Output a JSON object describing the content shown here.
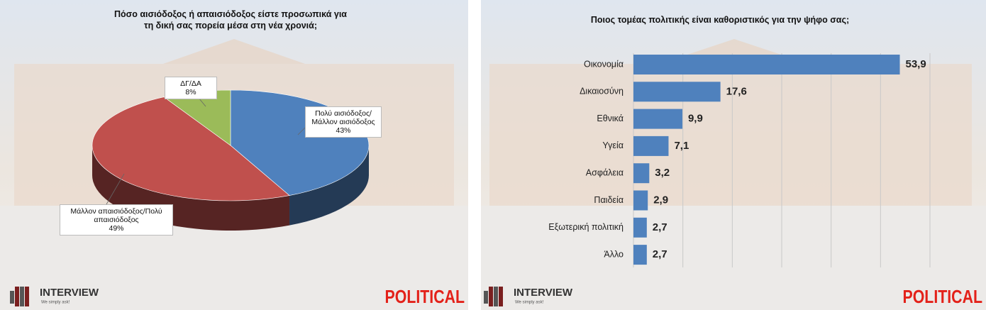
{
  "chart_data": [
    {
      "type": "pie",
      "title": "Πόσο αισιόδοξος ή απαισιόδοξος είστε προσωπικά για τη δική σας πορεία μέσα στη νέα χρονιά;",
      "categories": [
        "Πολύ αισιόδοξος/Μάλλον αισιόδοξος",
        "Μάλλον απαισιόδοξος/Πολύ απαισιόδοξος",
        "ΔΓ/ΔΑ"
      ],
      "values": [
        43,
        49,
        8
      ],
      "value_labels": [
        "43%",
        "49%",
        "8%"
      ],
      "colors": [
        "#4f81bd",
        "#c0504d",
        "#9bbb59"
      ]
    },
    {
      "type": "hbar",
      "title": "Ποιος τομέας πολιτικής είναι καθοριστικός για την ψήφο σας;",
      "categories": [
        "Οικονομία",
        "Δικαιοσύνη",
        "Εθνικά",
        "Υγεία",
        "Ασφάλεια",
        "Παιδεία",
        "Εξωτερική πολιτική",
        "Άλλο"
      ],
      "values": [
        53.9,
        17.6,
        9.9,
        7.1,
        3.2,
        2.9,
        2.7,
        2.7
      ],
      "value_labels": [
        "53,9",
        "17,6",
        "9,9",
        "7,1",
        "3,2",
        "2,9",
        "2,7",
        "2,7"
      ],
      "color": "#4f81bd",
      "xlim": [
        0,
        60
      ],
      "xticks": [
        0,
        10,
        20,
        30,
        40,
        50,
        60
      ],
      "grid": true
    }
  ],
  "footer": {
    "logo": "INTERVIEW",
    "tagline": "We simply ask!",
    "brand": "POLITICAL"
  }
}
